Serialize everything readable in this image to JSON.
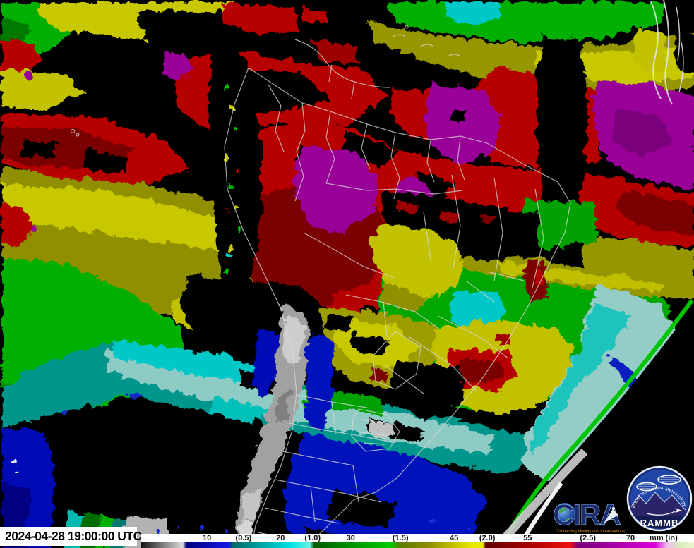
{
  "timestamp": "2024-04-28 19:00:00 UTC",
  "colorbar": {
    "units_label": "mm (in)",
    "labels": [
      {
        "text": "10",
        "x": 0.119
      },
      {
        "text": "(0.5)",
        "x": 0.185
      },
      {
        "text": "20",
        "x": 0.252
      },
      {
        "text": "(1.0)",
        "x": 0.31
      },
      {
        "text": "30",
        "x": 0.379
      },
      {
        "text": "(1.5)",
        "x": 0.469
      },
      {
        "text": "45",
        "x": 0.566
      },
      {
        "text": "(2.0)",
        "x": 0.626
      },
      {
        "text": "55",
        "x": 0.699
      },
      {
        "text": "(2.5)",
        "x": 0.808
      },
      {
        "text": "70",
        "x": 0.885
      },
      {
        "text": "mm (in)",
        "x": 0.945
      }
    ],
    "values_mm": [
      10,
      20,
      30,
      45,
      55,
      70
    ],
    "values_in": [
      0.5,
      1.0,
      1.5,
      2.0,
      2.5
    ],
    "gradient": [
      [
        "0",
        "#141414"
      ],
      [
        "0.075",
        "#dcdcdc"
      ],
      [
        "0.082",
        "#00007e"
      ],
      [
        "0.158",
        "#1616e8"
      ],
      [
        "0.166",
        "#006a66"
      ],
      [
        "0.27",
        "#00e2e2"
      ],
      [
        "0.305",
        "#66f2e8"
      ],
      [
        "0.313",
        "#005a00"
      ],
      [
        "0.45",
        "#00cc00"
      ],
      [
        "0.47",
        "#5e7c00"
      ],
      [
        "0.52",
        "#8e8e00"
      ],
      [
        "0.6",
        "#eaea00"
      ],
      [
        "0.618",
        "#eaea00"
      ],
      [
        "0.623",
        "#5e0000"
      ],
      [
        "0.7",
        "#a80000"
      ],
      [
        "0.776",
        "#ee1010"
      ],
      [
        "0.79",
        "#780078"
      ],
      [
        "0.93",
        "#dc00dc"
      ],
      [
        "0.952",
        "#eec0ee"
      ],
      [
        "0.975",
        "#d8ecba"
      ],
      [
        "1",
        "#ecf6d0"
      ]
    ]
  },
  "logos": {
    "cira": {
      "name": "CIRA",
      "tagline": "Connecting Models and Observations",
      "wordmark_color": "#1b2d6e",
      "tagline_color": "#e2901c"
    },
    "rammb": {
      "name": "RAMMB",
      "ring_text": "Regional and Mesoscale Meteorology Branch",
      "circle_color": "#16307e"
    }
  },
  "palette": {
    "field_red": "#cc0000",
    "field_dark_red": "#8a0000",
    "field_purple": "#aa00aa",
    "field_yellow": "#e0e000",
    "field_olive": "#a0a000",
    "field_green": "#00c400",
    "field_cyan": "#00e0e0",
    "field_pale_cyan": "#a5e6de",
    "field_blue": "#0014d2",
    "field_navy": "#000090",
    "terrain_gray": "#b4b4b4",
    "border_white": "#d9d9d9"
  }
}
